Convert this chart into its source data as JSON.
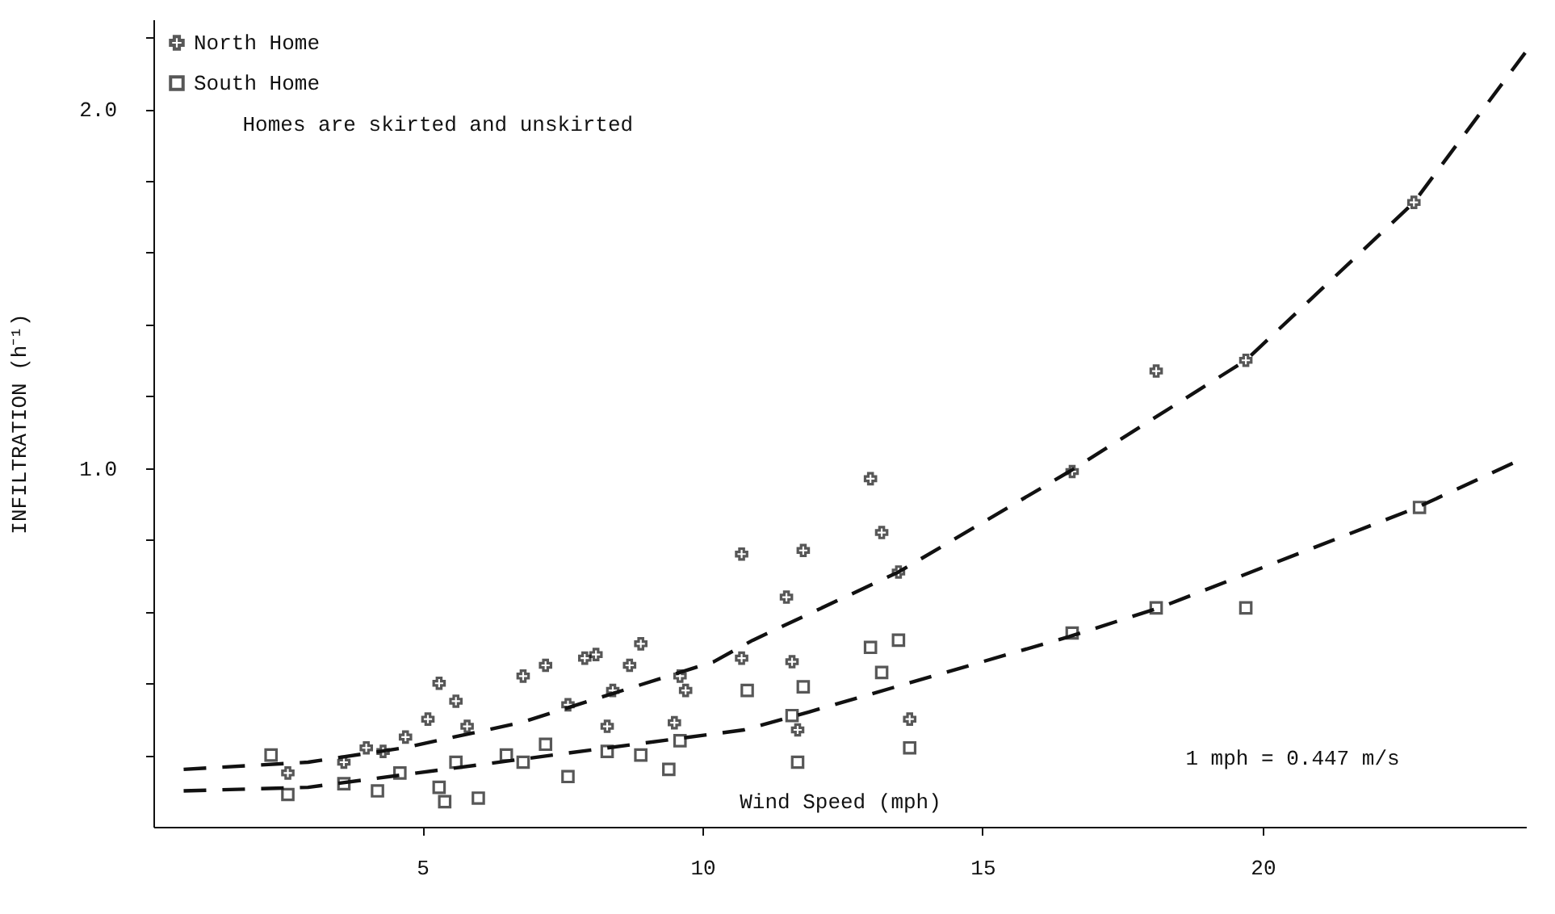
{
  "chart_data": {
    "type": "scatter",
    "xlabel": "Wind Speed (mph)",
    "ylabel": "INFILTRATION (h⁻¹)",
    "xlim": [
      0.2,
      24.7
    ],
    "xticks": [
      5,
      10,
      15,
      20
    ],
    "ylim": [
      0,
      2.25
    ],
    "yticks": [
      {
        "value": 0.2,
        "label": null
      },
      {
        "value": 0.4,
        "label": null
      },
      {
        "value": 0.6,
        "label": null
      },
      {
        "value": 0.8,
        "label": null
      },
      {
        "value": 1.0,
        "label": "1.0"
      },
      {
        "value": 1.2,
        "label": null
      },
      {
        "value": 1.4,
        "label": null
      },
      {
        "value": 1.6,
        "label": null
      },
      {
        "value": 1.8,
        "label": null
      },
      {
        "value": 2.0,
        "label": "2.0"
      },
      {
        "value": 2.2,
        "label": null
      }
    ],
    "grid": false,
    "legend": "top left",
    "annotations": [
      "Homes are skirted and unskirted",
      "1 mph = 0.447 m/s"
    ],
    "series": [
      {
        "name": "North Home",
        "marker": "cross",
        "color": "#111111",
        "x": [
          2.6,
          3.6,
          4.0,
          4.3,
          4.7,
          5.1,
          5.3,
          5.6,
          5.8,
          6.8,
          7.2,
          7.6,
          7.9,
          8.1,
          8.3,
          8.4,
          8.7,
          8.9,
          9.5,
          9.6,
          9.7,
          10.7,
          10.7,
          11.5,
          11.6,
          11.7,
          11.8,
          13.0,
          13.2,
          13.5,
          13.7,
          16.6,
          18.1,
          19.7,
          22.7
        ],
        "values": [
          0.15,
          0.18,
          0.22,
          0.21,
          0.25,
          0.3,
          0.4,
          0.35,
          0.28,
          0.42,
          0.45,
          0.34,
          0.47,
          0.48,
          0.28,
          0.38,
          0.45,
          0.51,
          0.29,
          0.42,
          0.38,
          0.47,
          0.76,
          0.64,
          0.46,
          0.27,
          0.77,
          0.97,
          0.82,
          0.71,
          0.3,
          0.99,
          1.27,
          1.3,
          1.74
        ]
      },
      {
        "name": "South Home",
        "marker": "square",
        "color": "#111111",
        "x": [
          2.3,
          2.6,
          3.6,
          4.2,
          4.6,
          5.3,
          5.4,
          5.6,
          6.0,
          6.5,
          6.8,
          7.2,
          7.6,
          8.3,
          8.9,
          9.4,
          9.6,
          10.8,
          11.6,
          11.7,
          11.8,
          13.0,
          13.2,
          13.5,
          13.7,
          16.6,
          18.1,
          19.7,
          22.8
        ],
        "values": [
          0.2,
          0.09,
          0.12,
          0.1,
          0.15,
          0.11,
          0.07,
          0.18,
          0.08,
          0.2,
          0.18,
          0.23,
          0.14,
          0.21,
          0.2,
          0.16,
          0.24,
          0.38,
          0.31,
          0.18,
          0.39,
          0.5,
          0.43,
          0.52,
          0.22,
          0.54,
          0.61,
          0.61,
          0.89
        ]
      },
      {
        "type": "line",
        "line_style": "dashed",
        "color": "#111111",
        "x": [
          0.74,
          2.96,
          4.67,
          6.75,
          10.2,
          10.9,
          13.5,
          16.55,
          19.7,
          22.7,
          24.7
        ],
        "values": [
          0.16,
          0.18,
          0.22,
          0.29,
          0.46,
          0.52,
          0.71,
          0.99,
          1.3,
          1.74,
          2.16
        ]
      },
      {
        "type": "line",
        "line_style": "dashed",
        "color": "#111111",
        "x": [
          0.74,
          2.96,
          10.74,
          11.9,
          16.55,
          18.15,
          22.76,
          24.7
        ],
        "values": [
          0.1,
          0.11,
          0.27,
          0.32,
          0.53,
          0.61,
          0.89,
          1.03
        ]
      }
    ]
  }
}
